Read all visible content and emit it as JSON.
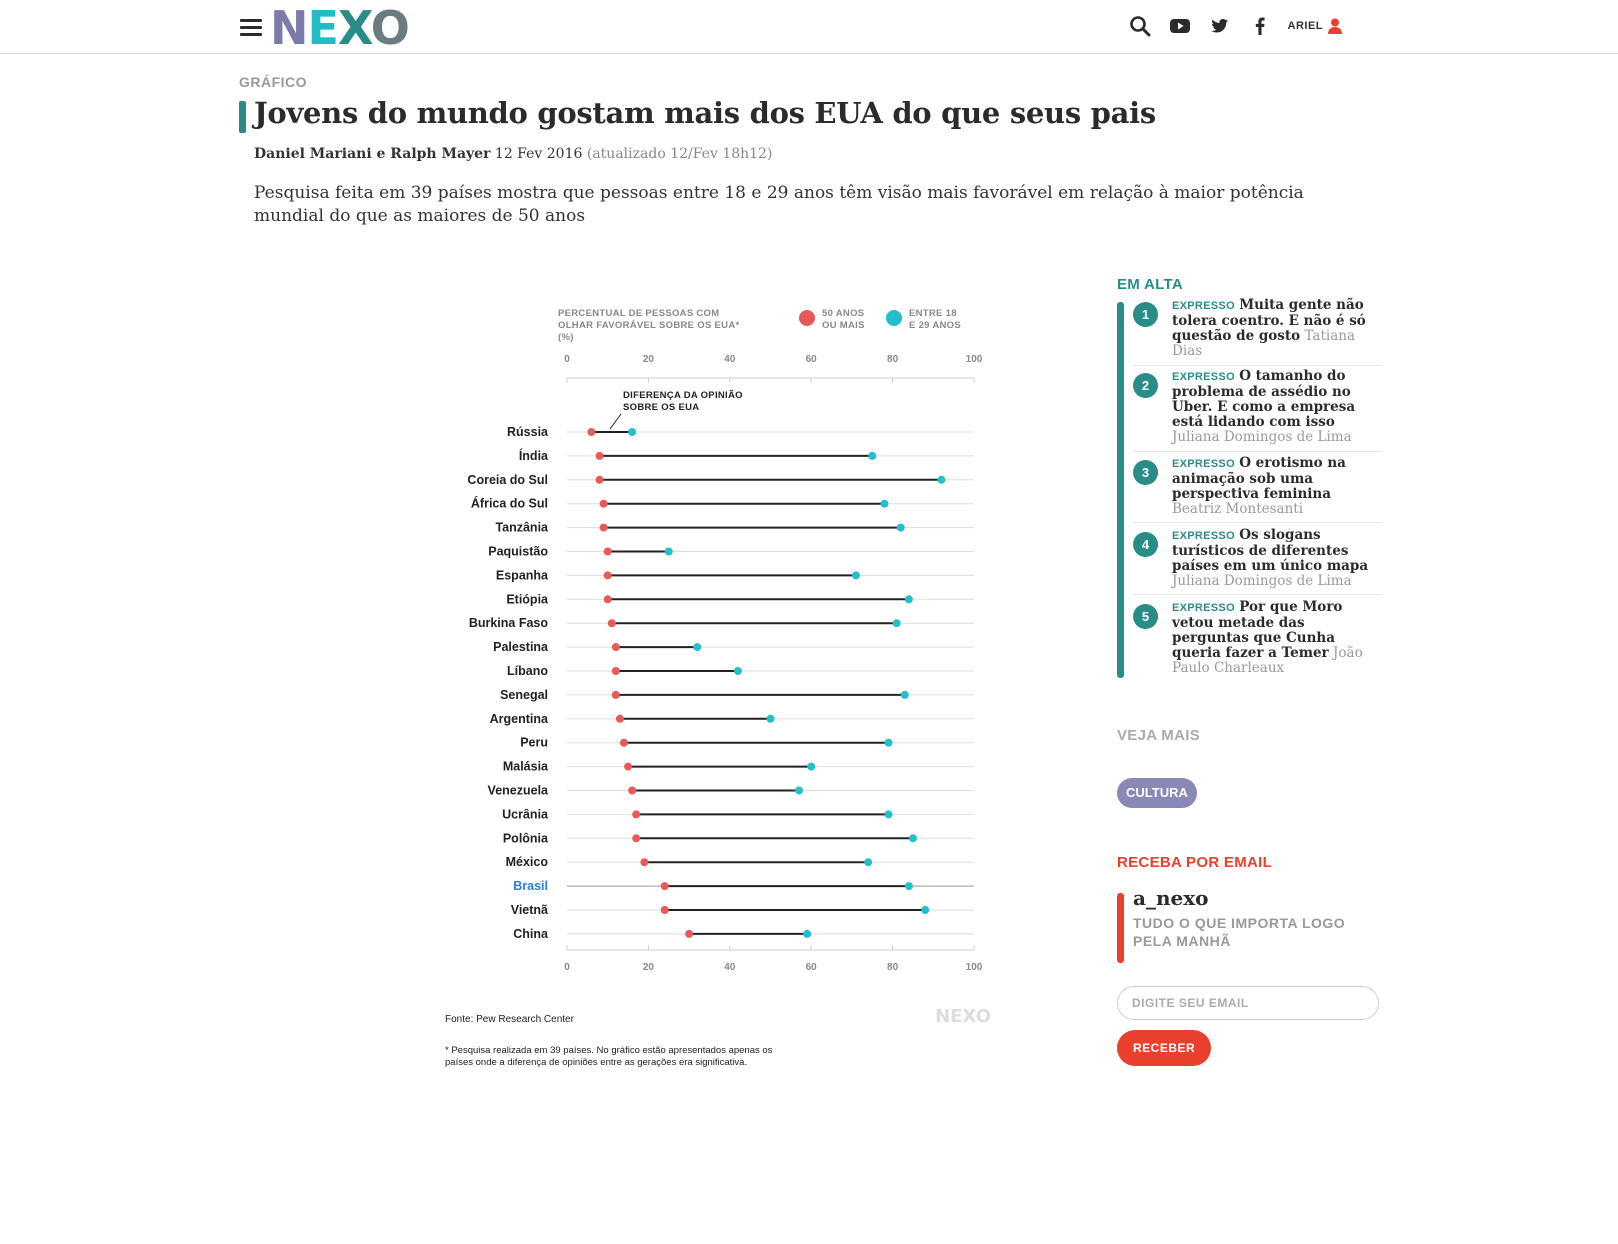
{
  "header": {
    "logo": {
      "l1": "N",
      "l2": "E",
      "l3": "X",
      "l4": "O"
    },
    "icons": [
      "menu-icon",
      "search-icon",
      "youtube-icon",
      "twitter-icon",
      "facebook-icon",
      "user-icon"
    ],
    "user_name": "ARIEL"
  },
  "article": {
    "kicker": "GRÁFICO",
    "title": "Jovens do mundo gostam mais dos EUA do que seus pais",
    "authors": "Daniel Mariani e Ralph Mayer",
    "date": "12 Fev 2016",
    "updated": "(atualizado 12/Fev 18h12)",
    "lede": "Pesquisa feita em 39 países mostra que pessoas entre 18 e 29 anos têm visão mais favorável em relação à maior potência mundial do que as maiores de 50 anos"
  },
  "chart_data": {
    "type": "dumbbell",
    "title_lines": [
      "PERCENTUAL DE PESSOAS COM",
      "OLHAR FAVORÁVEL SOBRE OS EUA*",
      "(%)"
    ],
    "xlim": [
      0,
      100
    ],
    "xticks": [
      0,
      20,
      40,
      60,
      80,
      100
    ],
    "annotation_lines": [
      "DIFERENÇA DA OPINIÃO",
      "SOBRE OS EUA"
    ],
    "highlight": "Brasil",
    "series": [
      {
        "name_lines": [
          "50 ANOS",
          "OU MAIS"
        ],
        "color": "#e85a5a"
      },
      {
        "name_lines": [
          "ENTRE 18",
          "E 29 ANOS"
        ],
        "color": "#23bfcb"
      }
    ],
    "categories": [
      "Rússia",
      "Índia",
      "Coreia do Sul",
      "África do Sul",
      "Tanzânia",
      "Paquistão",
      "Espanha",
      "Etiópia",
      "Burkina Faso",
      "Palestina",
      "Líbano",
      "Senegal",
      "Argentina",
      "Peru",
      "Malásia",
      "Venezuela",
      "Ucrânia",
      "Polônia",
      "México",
      "Brasil",
      "Vietnã",
      "China"
    ],
    "old": [
      6,
      8,
      8,
      9,
      9,
      10,
      10,
      10,
      11,
      12,
      12,
      12,
      13,
      14,
      15,
      16,
      17,
      17,
      19,
      24,
      24,
      30
    ],
    "young": [
      16,
      75,
      92,
      78,
      82,
      25,
      71,
      84,
      81,
      32,
      42,
      83,
      50,
      79,
      60,
      57,
      79,
      85,
      74,
      84,
      88,
      59
    ],
    "source": "Fonte: Pew Research Center",
    "footnote_lines": [
      "* Pesquisa realizada em 39 países. No gráfico estão apresentados apenas os",
      "países onde a diferença de opiniões entre as gerações era significativa."
    ],
    "watermark": "NEXO",
    "colors": {
      "old": "#e85a5a",
      "young": "#23bfcb",
      "highlight": "#2a7de1",
      "line": "#222222",
      "grid": "#cccccc"
    }
  },
  "sidebar": {
    "em_alta": {
      "heading": "EM ALTA",
      "items": [
        {
          "num": "1",
          "tag": "EXPRESSO",
          "title": "Muita gente não tolera coentro. E não é só questão de gosto",
          "author": "Tatiana Dias"
        },
        {
          "num": "2",
          "tag": "EXPRESSO",
          "title": "O tamanho do problema de assédio no Uber. E como a empresa está lidando com isso",
          "author": "Juliana Domingos de Lima"
        },
        {
          "num": "3",
          "tag": "EXPRESSO",
          "title": "O erotismo na animação sob uma perspectiva feminina",
          "author": "Beatriz Montesanti"
        },
        {
          "num": "4",
          "tag": "EXPRESSO",
          "title": "Os slogans turísticos de diferentes países em um único mapa",
          "author": "Juliana Domingos de Lima"
        },
        {
          "num": "5",
          "tag": "EXPRESSO",
          "title": "Por que Moro vetou metade das perguntas que Cunha queria fazer a Temer",
          "author": "João Paulo Charleaux"
        }
      ]
    },
    "veja_mais": {
      "heading": "VEJA MAIS",
      "tag": "CULTURA"
    },
    "newsletter": {
      "heading": "RECEBA POR EMAIL",
      "name": "a_nexo",
      "description": "TUDO O QUE IMPORTA LOGO PELA MANHÃ",
      "placeholder": "DIGITE SEU EMAIL",
      "button": "RECEBER"
    }
  }
}
